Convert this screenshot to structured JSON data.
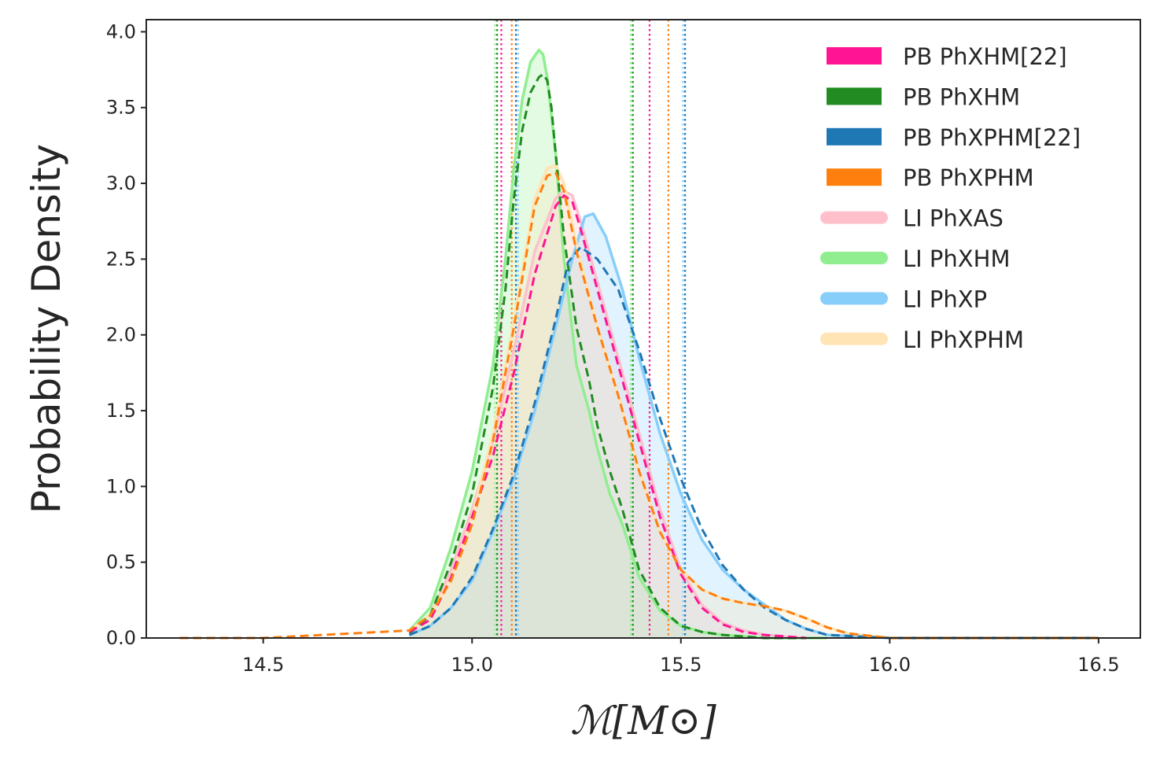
{
  "chart_data": {
    "type": "line",
    "title": "",
    "xlabel": "ℳ[M⊙]",
    "ylabel": "Probability Density",
    "xlim": [
      14.22,
      16.6
    ],
    "ylim": [
      0,
      4.08
    ],
    "xticks": [
      14.5,
      15.0,
      15.5,
      16.0,
      16.5
    ],
    "xtick_labels": [
      "14.5",
      "15.0",
      "15.5",
      "16.0",
      "16.5"
    ],
    "yticks": [
      0.0,
      0.5,
      1.0,
      1.5,
      2.0,
      2.5,
      3.0,
      3.5,
      4.0
    ],
    "ytick_labels": [
      "0.0",
      "0.5",
      "1.0",
      "1.5",
      "2.0",
      "2.5",
      "3.0",
      "3.5",
      "4.0"
    ],
    "grid": false,
    "legend_position": "top-right",
    "series": [
      {
        "name": "LI PhXHM",
        "style": "solid",
        "color": "#90ee90",
        "fill": "#90ee90",
        "x": [
          14.85,
          14.9,
          14.95,
          15.0,
          15.05,
          15.08,
          15.1,
          15.12,
          15.14,
          15.16,
          15.17,
          15.18,
          15.2,
          15.22,
          15.25,
          15.28,
          15.3,
          15.33,
          15.36,
          15.4,
          15.45,
          15.5,
          15.55,
          15.6,
          15.7,
          15.8,
          15.85
        ],
        "y": [
          0.05,
          0.2,
          0.6,
          1.1,
          1.8,
          2.5,
          3.1,
          3.55,
          3.8,
          3.88,
          3.85,
          3.7,
          3.2,
          2.5,
          1.8,
          1.5,
          1.25,
          0.95,
          0.75,
          0.4,
          0.18,
          0.08,
          0.04,
          0.02,
          0.0,
          0.0,
          0.0
        ]
      },
      {
        "name": "LI PhXAS",
        "style": "solid",
        "color": "#ffc0cb",
        "fill": "#ffc0cb",
        "x": [
          14.85,
          14.9,
          14.95,
          15.0,
          15.05,
          15.1,
          15.15,
          15.2,
          15.22,
          15.24,
          15.26,
          15.3,
          15.35,
          15.4,
          15.45,
          15.5,
          15.55,
          15.6,
          15.65,
          15.7,
          15.8
        ],
        "y": [
          0.05,
          0.15,
          0.45,
          0.85,
          1.3,
          1.9,
          2.55,
          2.9,
          2.95,
          2.92,
          2.75,
          2.35,
          1.85,
          1.35,
          0.85,
          0.45,
          0.22,
          0.1,
          0.05,
          0.02,
          0.0
        ]
      },
      {
        "name": "LI PhXP",
        "style": "solid",
        "color": "#87cefa",
        "fill": "#87cefa",
        "x": [
          14.85,
          14.9,
          14.95,
          15.0,
          15.05,
          15.1,
          15.15,
          15.2,
          15.24,
          15.27,
          15.29,
          15.32,
          15.36,
          15.4,
          15.45,
          15.5,
          15.55,
          15.6,
          15.65,
          15.7,
          15.75,
          15.8,
          15.85,
          16.0,
          16.5
        ],
        "y": [
          0.02,
          0.08,
          0.2,
          0.38,
          0.7,
          1.05,
          1.5,
          2.05,
          2.5,
          2.78,
          2.8,
          2.65,
          2.3,
          1.85,
          1.35,
          0.95,
          0.65,
          0.45,
          0.32,
          0.22,
          0.12,
          0.06,
          0.02,
          0.0,
          0.0
        ]
      },
      {
        "name": "LI PhXPHM",
        "style": "solid",
        "color": "#ffe4b5",
        "fill": "#ffe4b5",
        "x": [
          14.85,
          14.9,
          14.95,
          15.0,
          15.05,
          15.1,
          15.15,
          15.18,
          15.2,
          15.22,
          15.25,
          15.3,
          15.35,
          15.4,
          15.45,
          15.5,
          15.55,
          15.6,
          15.65,
          15.7,
          15.75,
          15.8,
          15.85,
          15.9,
          16.0,
          16.5
        ],
        "y": [
          0.05,
          0.15,
          0.4,
          0.8,
          1.35,
          2.1,
          2.9,
          3.1,
          3.12,
          3.0,
          2.6,
          2.05,
          1.6,
          1.1,
          0.7,
          0.45,
          0.32,
          0.26,
          0.23,
          0.21,
          0.18,
          0.13,
          0.07,
          0.03,
          0.0,
          0.0
        ]
      },
      {
        "name": "PB PhXHM",
        "style": "dashed",
        "color": "#228b22",
        "x": [
          14.85,
          14.9,
          14.95,
          15.0,
          15.05,
          15.08,
          15.1,
          15.12,
          15.14,
          15.16,
          15.17,
          15.18,
          15.19,
          15.2,
          15.22,
          15.25,
          15.28,
          15.3,
          15.33,
          15.36,
          15.4,
          15.45,
          15.5,
          15.55,
          15.6,
          15.7,
          15.8
        ],
        "y": [
          0.03,
          0.15,
          0.5,
          0.95,
          1.65,
          2.3,
          2.9,
          3.35,
          3.6,
          3.7,
          3.72,
          3.68,
          3.5,
          3.2,
          2.65,
          2.05,
          1.7,
          1.4,
          1.1,
          0.85,
          0.45,
          0.2,
          0.08,
          0.04,
          0.02,
          0.0,
          0.0
        ]
      },
      {
        "name": "PB PhXHM[22]",
        "style": "dashed",
        "color": "#ff1493",
        "x": [
          14.85,
          14.9,
          14.95,
          15.0,
          15.05,
          15.1,
          15.15,
          15.2,
          15.22,
          15.24,
          15.26,
          15.3,
          15.35,
          15.4,
          15.45,
          15.5,
          15.55,
          15.6,
          15.65,
          15.7,
          15.8
        ],
        "y": [
          0.04,
          0.12,
          0.4,
          0.8,
          1.2,
          1.75,
          2.4,
          2.85,
          2.92,
          2.88,
          2.7,
          2.3,
          1.8,
          1.3,
          0.8,
          0.42,
          0.2,
          0.09,
          0.04,
          0.02,
          0.0
        ]
      },
      {
        "name": "PB PhXPHM[22]",
        "style": "dashed",
        "color": "#1f77b4",
        "x": [
          14.85,
          14.9,
          14.95,
          15.0,
          15.05,
          15.1,
          15.15,
          15.2,
          15.23,
          15.26,
          15.3,
          15.35,
          15.4,
          15.45,
          15.5,
          15.55,
          15.6,
          15.65,
          15.7,
          15.75,
          15.8,
          15.85,
          16.0,
          16.5
        ],
        "y": [
          0.02,
          0.08,
          0.2,
          0.4,
          0.72,
          1.08,
          1.55,
          2.1,
          2.48,
          2.58,
          2.5,
          2.3,
          1.9,
          1.45,
          1.05,
          0.72,
          0.48,
          0.32,
          0.2,
          0.12,
          0.06,
          0.02,
          0.0,
          0.0
        ]
      },
      {
        "name": "PB PhXPHM",
        "style": "dashed",
        "color": "#ff7f0e",
        "x": [
          14.3,
          14.5,
          14.85,
          14.9,
          14.95,
          15.0,
          15.05,
          15.1,
          15.15,
          15.18,
          15.2,
          15.22,
          15.25,
          15.3,
          15.35,
          15.4,
          15.45,
          15.5,
          15.55,
          15.6,
          15.65,
          15.7,
          15.75,
          15.8,
          15.85,
          15.9,
          16.0,
          16.5
        ],
        "y": [
          0.0,
          0.0,
          0.05,
          0.15,
          0.38,
          0.75,
          1.3,
          2.05,
          2.85,
          3.05,
          3.07,
          2.95,
          2.55,
          2.05,
          1.6,
          1.1,
          0.7,
          0.45,
          0.32,
          0.26,
          0.23,
          0.21,
          0.18,
          0.13,
          0.07,
          0.03,
          0.0,
          0.0
        ]
      }
    ],
    "interval_lines": [
      {
        "series": "PB PhXHM",
        "color": "#228b22",
        "x": [
          15.06,
          15.385
        ]
      },
      {
        "series": "LI PhXHM",
        "color": "#90ee90",
        "x": [
          15.055,
          15.38
        ]
      },
      {
        "series": "PB PhXHM[22]",
        "color": "#ff1493",
        "x": [
          15.07,
          15.425
        ]
      },
      {
        "series": "PB PhXPHM",
        "color": "#ff7f0e",
        "x": [
          15.095,
          15.47
        ]
      },
      {
        "series": "LI PhXP",
        "color": "#87cefa",
        "x": [
          15.11,
          15.505
        ]
      },
      {
        "series": "PB PhXPHM[22]",
        "color": "#1f77b4",
        "x": [
          15.105,
          15.51
        ]
      }
    ]
  },
  "legend": [
    {
      "label": "PB PhXHM[22]",
      "color": "#ff1493",
      "kind": "patch"
    },
    {
      "label": "PB PhXHM",
      "color": "#228b22",
      "kind": "patch"
    },
    {
      "label": "PB PhXPHM[22]",
      "color": "#1f77b4",
      "kind": "patch"
    },
    {
      "label": "PB PhXPHM",
      "color": "#ff7f0e",
      "kind": "patch"
    },
    {
      "label": "LI PhXAS",
      "color": "#ffc0cb",
      "kind": "line"
    },
    {
      "label": "LI PhXHM",
      "color": "#90ee90",
      "kind": "line"
    },
    {
      "label": "LI PhXP",
      "color": "#87cefa",
      "kind": "line"
    },
    {
      "label": "LI PhXPHM",
      "color": "#ffe4b5",
      "kind": "line"
    }
  ]
}
